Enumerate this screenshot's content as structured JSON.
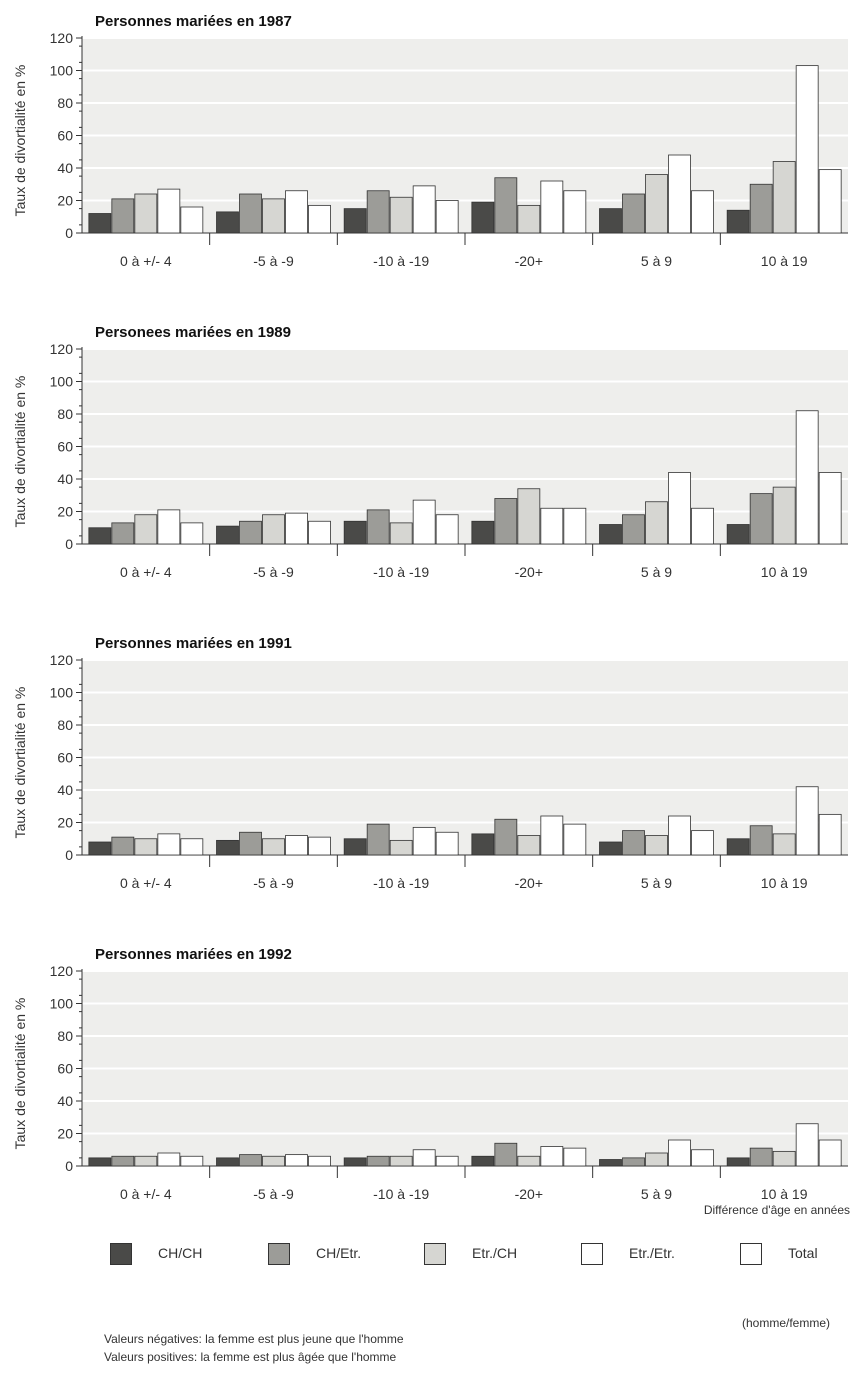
{
  "colors": {
    "CH/CH": "#4a4a48",
    "CH/Etr.": "#9c9c98",
    "Etr./CH": "#d6d6d2",
    "Etr./Etr.": "#ffffff",
    "Total": "#ffffff",
    "panel_bg": "#eeeeec",
    "grid": "#ffffff"
  },
  "ylabel": "Taux de divortialité en %",
  "xlabel": "Différence d'âge en années",
  "legend": {
    "items": [
      {
        "label": "CH/CH",
        "color": "#4a4a48"
      },
      {
        "label": "CH/Etr.",
        "color": "#9c9c98"
      },
      {
        "label": "Etr./CH",
        "color": "#d6d6d2"
      },
      {
        "label": "Etr./Etr.",
        "color": "#ffffff"
      },
      {
        "label": "Total",
        "color": "#ffffff"
      }
    ],
    "subtitle": "(homme/femme)"
  },
  "notes": [
    "Valeurs négatives: la femme est plus jeune que l'homme",
    "Valeurs positives: la femme est plus âgée que l'homme"
  ],
  "chart_data": [
    {
      "type": "bar",
      "title": "Personnes mariées en 1987",
      "ylabel": "Taux de divortialité en %",
      "ylim": [
        0,
        120
      ],
      "yticks": [
        0,
        20,
        40,
        60,
        80,
        100,
        120
      ],
      "grid": true,
      "categories": [
        "0 à +/- 4",
        "-5 à -9",
        "-10 à -19",
        "-20+",
        "5 à 9",
        "10 à 19"
      ],
      "series": [
        {
          "name": "CH/CH",
          "values": [
            12,
            13,
            15,
            19,
            15,
            14
          ]
        },
        {
          "name": "CH/Etr.",
          "values": [
            21,
            24,
            26,
            34,
            24,
            30
          ]
        },
        {
          "name": "Etr./CH",
          "values": [
            24,
            21,
            22,
            17,
            36,
            44
          ]
        },
        {
          "name": "Etr./Etr.",
          "values": [
            27,
            26,
            29,
            32,
            48,
            103
          ]
        },
        {
          "name": "Total",
          "values": [
            16,
            17,
            20,
            26,
            26,
            39
          ]
        }
      ]
    },
    {
      "type": "bar",
      "title": "Personees mariées en 1989",
      "ylabel": "Taux de divortialité en %",
      "ylim": [
        0,
        120
      ],
      "yticks": [
        0,
        20,
        40,
        60,
        80,
        100,
        120
      ],
      "grid": true,
      "categories": [
        "0 à +/- 4",
        "-5 à -9",
        "-10 à -19",
        "-20+",
        "5 à 9",
        "10 à 19"
      ],
      "series": [
        {
          "name": "CH/CH",
          "values": [
            10,
            11,
            14,
            14,
            12,
            12
          ]
        },
        {
          "name": "CH/Etr.",
          "values": [
            13,
            14,
            21,
            28,
            18,
            31
          ]
        },
        {
          "name": "Etr./CH",
          "values": [
            18,
            18,
            13,
            34,
            26,
            35
          ]
        },
        {
          "name": "Etr./Etr.",
          "values": [
            21,
            19,
            27,
            22,
            44,
            82
          ]
        },
        {
          "name": "Total",
          "values": [
            13,
            14,
            18,
            22,
            22,
            44
          ]
        }
      ]
    },
    {
      "type": "bar",
      "title": "Personnes mariées en 1991",
      "ylabel": "Taux de divortialité en %",
      "ylim": [
        0,
        120
      ],
      "yticks": [
        0,
        20,
        40,
        60,
        80,
        100,
        120
      ],
      "grid": true,
      "categories": [
        "0 à +/- 4",
        "-5 à -9",
        "-10 à -19",
        "-20+",
        "5 à 9",
        "10 à 19"
      ],
      "series": [
        {
          "name": "CH/CH",
          "values": [
            8,
            9,
            10,
            13,
            8,
            10
          ]
        },
        {
          "name": "CH/Etr.",
          "values": [
            11,
            14,
            19,
            22,
            15,
            18
          ]
        },
        {
          "name": "Etr./CH",
          "values": [
            10,
            10,
            9,
            12,
            12,
            13
          ]
        },
        {
          "name": "Etr./Etr.",
          "values": [
            13,
            12,
            17,
            24,
            24,
            42
          ]
        },
        {
          "name": "Total",
          "values": [
            10,
            11,
            14,
            19,
            15,
            25
          ]
        }
      ]
    },
    {
      "type": "bar",
      "title": "Personnes mariées en 1992",
      "ylabel": "Taux de divortialité en %",
      "xlabel": "Différence d'âge en années",
      "ylim": [
        0,
        120
      ],
      "yticks": [
        0,
        20,
        40,
        60,
        80,
        100,
        120
      ],
      "grid": true,
      "categories": [
        "0 à +/- 4",
        "-5 à -9",
        "-10 à -19",
        "-20+",
        "5 à 9",
        "10 à 19"
      ],
      "series": [
        {
          "name": "CH/CH",
          "values": [
            5,
            5,
            5,
            6,
            4,
            5
          ]
        },
        {
          "name": "CH/Etr.",
          "values": [
            6,
            7,
            6,
            14,
            5,
            11
          ]
        },
        {
          "name": "Etr./CH",
          "values": [
            6,
            6,
            6,
            6,
            8,
            9
          ]
        },
        {
          "name": "Etr./Etr.",
          "values": [
            8,
            7,
            10,
            12,
            16,
            26
          ]
        },
        {
          "name": "Total",
          "values": [
            6,
            6,
            6,
            11,
            10,
            16
          ]
        }
      ]
    }
  ]
}
